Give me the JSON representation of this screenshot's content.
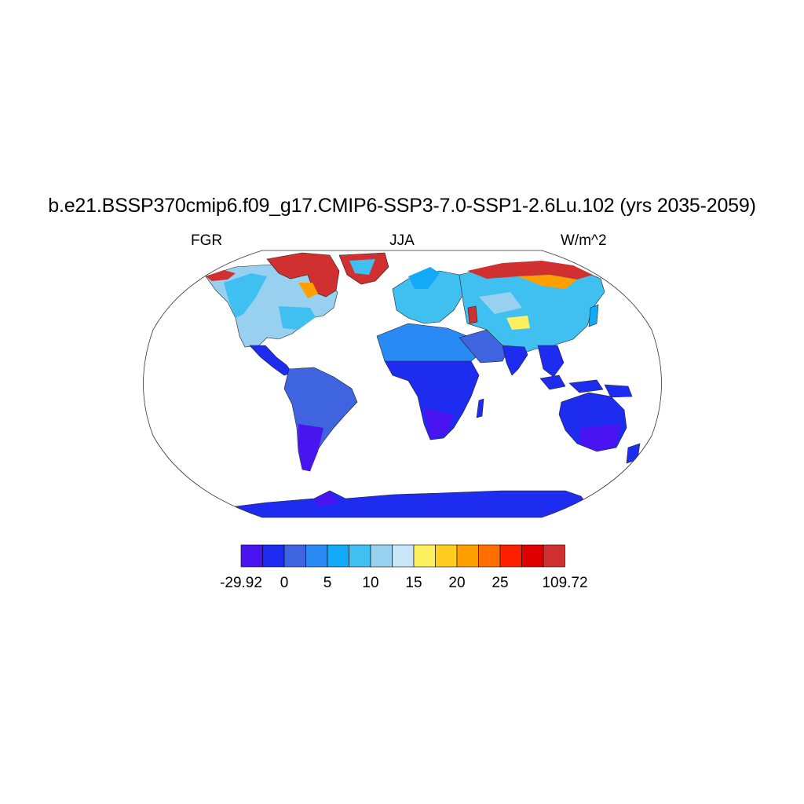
{
  "title": "b.e21.BSSP370cmip6.f09_g17.CMIP6-SSP3-7.0-SSP1-2.6Lu.102 (yrs 2035-2059)",
  "left_label": "FGR",
  "center_label": "JJA",
  "right_label": "W/m^2",
  "chart_data": {
    "type": "map",
    "projection": "Robinson",
    "variable": "FGR",
    "season": "JJA",
    "units": "W/m^2",
    "colorbar": {
      "min_label": "-29.92",
      "max_label": "109.72",
      "levels": [
        0,
        2.5,
        5,
        7.5,
        10,
        12.5,
        15,
        17.5,
        20,
        22.5,
        25,
        27.5
      ],
      "tick_labels": [
        "-29.92",
        "0",
        "5",
        "10",
        "15",
        "20",
        "25",
        "109.72"
      ],
      "colors": [
        "#4a14f0",
        "#1e2cf0",
        "#3f64e0",
        "#2a8af5",
        "#12aaf8",
        "#40c0f0",
        "#98d0ef",
        "#c8e6f7",
        "#fff060",
        "#ffcc20",
        "#ffa000",
        "#ff7000",
        "#ff2000",
        "#e00000",
        "#d03030"
      ]
    }
  }
}
